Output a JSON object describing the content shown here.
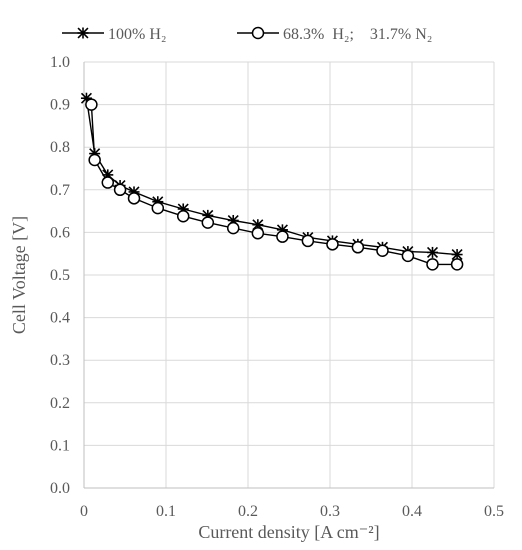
{
  "chart_data": {
    "type": "line",
    "title": "",
    "xlabel": "Current density [A cm⁻²]",
    "ylabel": "Cell Voltage [V]",
    "xlim": [
      0,
      0.5
    ],
    "ylim": [
      0,
      1.0
    ],
    "x_ticks": [
      "0",
      "0.1",
      "0.2",
      "0.3",
      "0.4",
      "0.5"
    ],
    "y_ticks": [
      "0.0",
      "0.1",
      "0.2",
      "0.3",
      "0.4",
      "0.5",
      "0.6",
      "0.7",
      "0.8",
      "0.9",
      "1.0"
    ],
    "grid": "vertical and horizontal",
    "legend_position": "top",
    "series": [
      {
        "name": "100% H₂",
        "marker": "star",
        "color": "#000000",
        "x": [
          0.003,
          0.013,
          0.029,
          0.044,
          0.061,
          0.09,
          0.121,
          0.151,
          0.182,
          0.212,
          0.242,
          0.273,
          0.303,
          0.334,
          0.364,
          0.395,
          0.425,
          0.455
        ],
        "y": [
          0.915,
          0.785,
          0.735,
          0.71,
          0.695,
          0.672,
          0.655,
          0.64,
          0.628,
          0.618,
          0.606,
          0.588,
          0.58,
          0.572,
          0.565,
          0.555,
          0.553,
          0.548
        ]
      },
      {
        "name": "68.3%  H₂;    31.7% N₂",
        "marker": "circle",
        "color": "#000000",
        "x": [
          0.009,
          0.013,
          0.029,
          0.044,
          0.061,
          0.09,
          0.121,
          0.151,
          0.182,
          0.212,
          0.242,
          0.273,
          0.303,
          0.334,
          0.364,
          0.395,
          0.425,
          0.455
        ],
        "y": [
          0.9,
          0.77,
          0.717,
          0.7,
          0.68,
          0.657,
          0.638,
          0.623,
          0.61,
          0.598,
          0.59,
          0.58,
          0.572,
          0.565,
          0.557,
          0.545,
          0.525,
          0.525
        ]
      }
    ]
  }
}
